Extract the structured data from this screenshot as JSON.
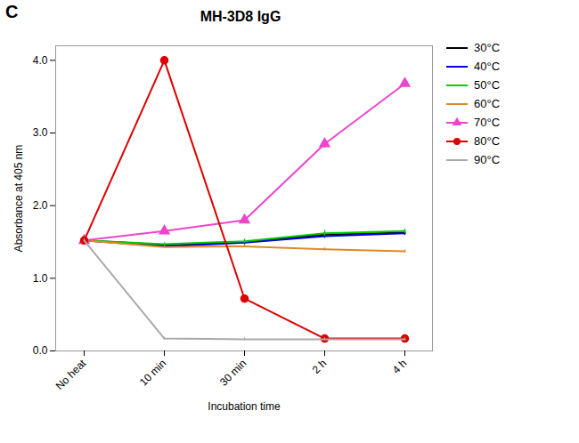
{
  "chart_data": {
    "type": "line",
    "title": "MH-3D8 IgG",
    "xlabel": "Incubation time",
    "ylabel": "Absorbance at 405 nm",
    "annotations": [
      "C"
    ],
    "categories": [
      "No heat",
      "10 min",
      "30 min",
      "2 h",
      "4 h"
    ],
    "ylim": [
      0,
      4.2
    ],
    "yticks": [
      {
        "value": 0,
        "label": "0.0"
      },
      {
        "value": 1,
        "label": "1.0"
      },
      {
        "value": 2,
        "label": "2.0"
      },
      {
        "value": 3,
        "label": "3.0"
      },
      {
        "value": 4,
        "label": "4.0"
      }
    ],
    "grid": false,
    "legend": "right",
    "series": [
      {
        "name": "30°C",
        "color": "#000000",
        "values": [
          1.52,
          1.46,
          1.5,
          1.6,
          1.63
        ],
        "yerr": [
          0.02,
          0.02,
          0.03,
          0.04,
          0.03
        ]
      },
      {
        "name": "40°C",
        "color": "#0000dd",
        "values": [
          1.52,
          1.44,
          1.49,
          1.58,
          1.62
        ],
        "yerr": [
          0.02,
          0.02,
          0.03,
          0.03,
          0.03
        ]
      },
      {
        "name": "50°C",
        "color": "#00cc00",
        "values": [
          1.52,
          1.47,
          1.51,
          1.62,
          1.65
        ],
        "yerr": [
          0.02,
          0.02,
          0.03,
          0.04,
          0.03
        ]
      },
      {
        "name": "60°C",
        "color": "#e08828",
        "values": [
          1.52,
          1.43,
          1.44,
          1.4,
          1.37
        ],
        "yerr": [
          0.02,
          0.02,
          0.02,
          0.02,
          0.02
        ]
      },
      {
        "name": "70°C",
        "color": "#ee44cc",
        "marker": "triangle",
        "values": [
          1.52,
          1.65,
          1.8,
          2.85,
          3.68
        ],
        "yerr": [
          0.02,
          0.03,
          0.04,
          0.06,
          0.05
        ]
      },
      {
        "name": "80°C",
        "color": "#dd0000",
        "marker": "circle",
        "values": [
          1.52,
          4.0,
          0.72,
          0.17,
          0.17
        ],
        "yerr": [
          0.02,
          0.04,
          0.04,
          0.02,
          0.02
        ]
      },
      {
        "name": "90°C",
        "color": "#aaaaaa",
        "values": [
          1.52,
          0.17,
          0.16,
          0.16,
          0.16
        ],
        "yerr": [
          0.02,
          0.02,
          0.02,
          0.02,
          0.02
        ]
      }
    ]
  }
}
